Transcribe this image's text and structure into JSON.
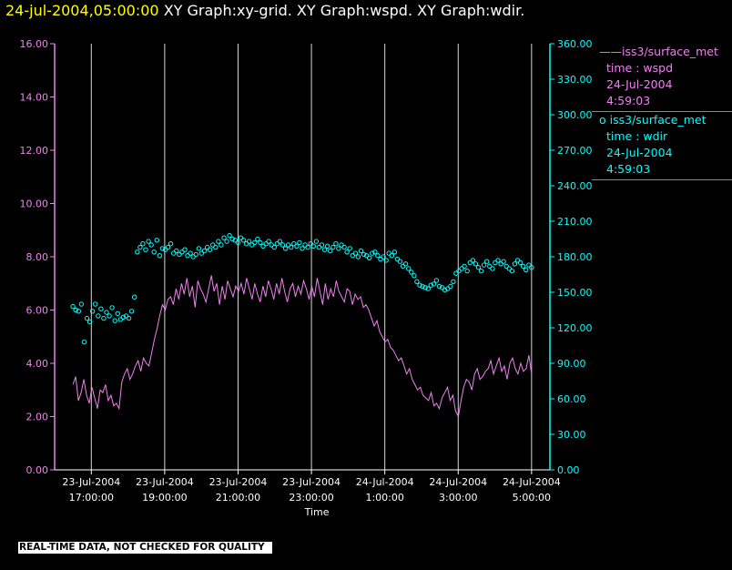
{
  "header": {
    "timestamp": "24-jul-2004,05:00:00",
    "title": "XY Graph:xy-grid.  XY Graph:wspd.  XY Graph:wdir."
  },
  "legend": {
    "wspd": {
      "symbol": "——",
      "name": "iss3/surface_met",
      "var": "time : wspd",
      "date": "24-Jul-2004",
      "time": "4:59:03"
    },
    "wdir": {
      "symbol": "o",
      "name": "iss3/surface_met",
      "var": "time : wdir",
      "date": "24-Jul-2004",
      "time": "4:59:03"
    }
  },
  "footer_note": "REAL-TIME DATA, NOT CHECKED FOR QUALITY",
  "colors": {
    "wspd": "#ee82ee",
    "wdir": "#00ffff",
    "grid": "#ffffff",
    "header_timestamp": "#ffff00"
  },
  "chart_data": {
    "type": "line",
    "xlabel": "Time",
    "x_range": [
      "2004-07-23T16:00:00",
      "2004-07-24T05:30:00"
    ],
    "x_ticks": [
      {
        "date": "23-Jul-2004",
        "time": "17:00:00",
        "t": "2004-07-23T17:00:00"
      },
      {
        "date": "23-Jul-2004",
        "time": "19:00:00",
        "t": "2004-07-23T19:00:00"
      },
      {
        "date": "23-Jul-2004",
        "time": "21:00:00",
        "t": "2004-07-23T21:00:00"
      },
      {
        "date": "23-Jul-2004",
        "time": "23:00:00",
        "t": "2004-07-23T23:00:00"
      },
      {
        "date": "24-Jul-2004",
        "time": "1:00:00",
        "t": "2004-07-24T01:00:00"
      },
      {
        "date": "24-Jul-2004",
        "time": "3:00:00",
        "t": "2004-07-24T03:00:00"
      },
      {
        "date": "24-Jul-2004",
        "time": "5:00:00",
        "t": "2004-07-24T05:00:00"
      }
    ],
    "y_left": {
      "min": 0,
      "max": 16,
      "ticks": [
        "0.00",
        "2.00",
        "4.00",
        "6.00",
        "8.00",
        "10.00",
        "12.00",
        "14.00",
        "16.00"
      ]
    },
    "y_right": {
      "min": 0,
      "max": 360,
      "ticks": [
        "0.00",
        "30.00",
        "60.00",
        "90.00",
        "120.00",
        "150.00",
        "180.00",
        "210.00",
        "240.00",
        "270.00",
        "300.00",
        "330.00",
        "360.00"
      ]
    },
    "grid": "vertical",
    "series": [
      {
        "name": "iss3/surface_met time : wspd",
        "axis": "left",
        "style": "line",
        "time_start": "2004-07-23T16:30:00",
        "time_end": "2004-07-24T05:00:00",
        "values": [
          3.2,
          3.5,
          2.6,
          2.9,
          3.4,
          2.8,
          2.5,
          3.1,
          2.7,
          2.3,
          3.0,
          2.9,
          3.2,
          2.6,
          2.8,
          2.4,
          2.5,
          2.3,
          3.3,
          3.6,
          3.8,
          3.4,
          3.6,
          3.9,
          4.1,
          3.7,
          4.2,
          4.0,
          3.9,
          4.4,
          4.9,
          5.3,
          5.8,
          6.2,
          6.0,
          6.4,
          6.5,
          6.2,
          6.8,
          6.4,
          7.0,
          6.6,
          7.2,
          6.5,
          6.9,
          6.1,
          7.1,
          6.8,
          6.6,
          6.3,
          6.8,
          7.3,
          6.7,
          7.0,
          6.2,
          6.9,
          6.4,
          7.1,
          6.8,
          6.5,
          6.9,
          6.7,
          7.0,
          6.6,
          7.2,
          6.8,
          6.4,
          7.0,
          6.6,
          6.3,
          6.9,
          6.5,
          7.1,
          6.8,
          6.4,
          7.0,
          6.6,
          7.2,
          6.7,
          6.3,
          6.8,
          7.0,
          6.5,
          6.9,
          6.6,
          7.1,
          6.8,
          6.4,
          6.9,
          6.5,
          7.2,
          6.7,
          6.2,
          7.0,
          6.4,
          6.8,
          6.5,
          7.1,
          6.7,
          6.5,
          6.3,
          6.8,
          6.7,
          6.2,
          6.6,
          6.4,
          6.5,
          6.1,
          6.2,
          6.0,
          5.7,
          5.4,
          5.6,
          5.2,
          5.0,
          4.8,
          4.9,
          4.6,
          4.5,
          4.3,
          4.1,
          4.2,
          3.9,
          3.6,
          3.8,
          3.4,
          3.2,
          3.0,
          3.1,
          2.8,
          2.7,
          2.6,
          2.9,
          2.4,
          2.5,
          2.3,
          2.7,
          2.9,
          3.1,
          2.6,
          2.8,
          2.2,
          2.0,
          2.6,
          3.1,
          3.4,
          3.3,
          3.0,
          3.6,
          3.8,
          3.4,
          3.5,
          3.7,
          3.8,
          4.1,
          3.6,
          3.9,
          4.2,
          3.7,
          3.9,
          3.4,
          4.0,
          4.2,
          3.8,
          3.6,
          4.0,
          3.7,
          3.8,
          4.3,
          3.6
        ]
      },
      {
        "name": "iss3/surface_met time : wdir",
        "axis": "right",
        "style": "circle",
        "time_start": "2004-07-23T16:30:00",
        "time_end": "2004-07-24T05:00:00",
        "values": [
          138,
          135,
          134,
          140,
          108,
          128,
          125,
          134,
          140,
          130,
          136,
          128,
          133,
          130,
          137,
          126,
          132,
          127,
          129,
          130,
          128,
          134,
          146,
          184,
          188,
          191,
          186,
          193,
          190,
          184,
          194,
          181,
          187,
          186,
          188,
          191,
          183,
          185,
          182,
          184,
          186,
          181,
          183,
          180,
          182,
          187,
          183,
          185,
          188,
          186,
          190,
          188,
          193,
          190,
          196,
          193,
          198,
          195,
          194,
          192,
          196,
          194,
          191,
          193,
          190,
          192,
          195,
          192,
          189,
          191,
          193,
          190,
          188,
          191,
          193,
          190,
          187,
          190,
          188,
          191,
          189,
          192,
          187,
          190,
          188,
          191,
          189,
          193,
          188,
          190,
          186,
          189,
          185,
          188,
          191,
          187,
          190,
          188,
          184,
          187,
          181,
          183,
          180,
          185,
          182,
          181,
          179,
          183,
          184,
          181,
          178,
          180,
          177,
          183,
          181,
          184,
          178,
          176,
          172,
          174,
          170,
          167,
          164,
          159,
          156,
          155,
          154,
          153,
          156,
          157,
          160,
          155,
          154,
          152,
          153,
          155,
          159,
          166,
          168,
          170,
          172,
          168,
          175,
          177,
          174,
          171,
          168,
          173,
          176,
          172,
          170,
          175,
          177,
          174,
          176,
          172,
          170,
          168,
          174,
          177,
          175,
          172,
          169,
          173,
          171
        ]
      }
    ]
  }
}
